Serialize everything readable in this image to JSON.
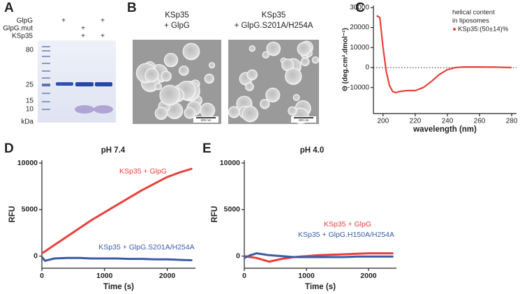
{
  "panels": {
    "A": {
      "letter": "A",
      "rows": [
        {
          "label": "GlpG",
          "signs": [
            "+",
            null,
            "+"
          ]
        },
        {
          "label": "GlpG.mut",
          "signs": [
            null,
            "+",
            null
          ]
        },
        {
          "label": "KSp35",
          "signs": [
            null,
            "+",
            "+"
          ]
        }
      ],
      "ladder": [
        "80",
        "25",
        "15",
        "10"
      ],
      "unit": "kDa"
    },
    "B": {
      "letter": "B",
      "images": [
        {
          "title": [
            "KSp35",
            "+ GlpG"
          ],
          "scale": "200 nm"
        },
        {
          "title": [
            "KSp35",
            "+ GlpG.S201A/H254A"
          ],
          "scale": "200 nm"
        }
      ]
    }
  },
  "chart_data": [
    {
      "letter": "C",
      "type": "line",
      "ylabel": "Θ (deg.cm².dmol⁻¹)",
      "xlabel": "wavelength (nm)",
      "legend_title": [
        "helical content",
        "in liposomes"
      ],
      "x": [
        196,
        198,
        200,
        202,
        204,
        206,
        208,
        210,
        215,
        220,
        225,
        230,
        235,
        240,
        245,
        250,
        260,
        270,
        280
      ],
      "series": [
        {
          "name": "KSp35:(50±14)%",
          "color": "#e8413c",
          "values": [
            26000,
            25000,
            10000,
            -2000,
            -9000,
            -12000,
            -12500,
            -12000,
            -11500,
            -11500,
            -10000,
            -7000,
            -3500,
            -1000,
            0,
            300,
            300,
            200,
            0
          ]
        }
      ],
      "xlim": [
        194,
        283
      ],
      "ylim": [
        -23000,
        31000
      ],
      "xticks": [
        200,
        220,
        240,
        260,
        280
      ],
      "yticks": [
        30000,
        20000,
        10000,
        0,
        -10000
      ],
      "zero_line": true
    },
    {
      "letter": "D",
      "type": "line",
      "title": "pH 7.4",
      "xlabel": "Time (s)",
      "ylabel": "RFU",
      "x": [
        0,
        50,
        200,
        400,
        600,
        800,
        1000,
        1200,
        1400,
        1600,
        1800,
        2000,
        2200,
        2400
      ],
      "series": [
        {
          "name": "KSp35 + GlpG",
          "color": "#e8413c",
          "values": [
            300,
            500,
            1200,
            2100,
            3000,
            3900,
            4700,
            5500,
            6300,
            7100,
            7800,
            8500,
            9000,
            9400
          ]
        },
        {
          "name": "KSp35 + GlpG.S201A/H254A",
          "color": "#3b5ba5",
          "values": [
            -100,
            -500,
            -250,
            -200,
            -200,
            -250,
            -250,
            -250,
            -300,
            -300,
            -350,
            -350,
            -400,
            -450
          ]
        }
      ],
      "xlim": [
        0,
        2450
      ],
      "ylim": [
        -1300,
        10300
      ],
      "xticks": [
        0,
        1000,
        2000
      ],
      "yticks": [
        0,
        5000,
        10000
      ]
    },
    {
      "letter": "E",
      "type": "line",
      "title": "pH 4.0",
      "xlabel": "Time (s)",
      "ylabel": "RFU",
      "x": [
        0,
        100,
        200,
        400,
        600,
        800,
        1000,
        1200,
        1400,
        1600,
        1800,
        2000,
        2200,
        2400
      ],
      "series": [
        {
          "name": "KSp35 + GlpG",
          "color": "#e8413c",
          "values": [
            0,
            -100,
            -200,
            -600,
            -300,
            -100,
            0,
            100,
            150,
            200,
            250,
            300,
            300,
            300
          ]
        },
        {
          "name": "KSp35 + GlpG.H150A/H254A",
          "color": "#3b5ba5",
          "values": [
            -200,
            100,
            300,
            100,
            0,
            -100,
            -100,
            -100,
            -100,
            -100,
            -50,
            -50,
            -50,
            -50
          ]
        }
      ],
      "xlim": [
        0,
        2450
      ],
      "ylim": [
        -1300,
        10300
      ],
      "xticks": [
        0,
        1000,
        2000
      ],
      "yticks": [
        0,
        5000,
        10000
      ]
    }
  ]
}
